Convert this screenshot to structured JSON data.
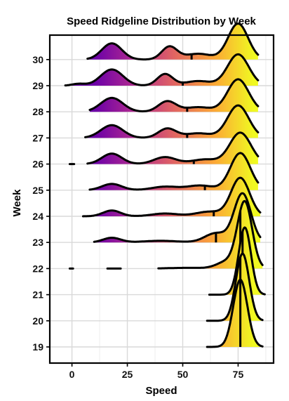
{
  "chart_data": {
    "type": "ridgeline",
    "title": "Speed Ridgeline Distribution by Week",
    "xlabel": "Speed",
    "ylabel": "Week",
    "xlim": [
      -10,
      91
    ],
    "x_ticks": [
      0,
      25,
      50,
      75
    ],
    "grid": true,
    "legend": "none",
    "fill_gradient": [
      "#6a00a8",
      "#b12a90",
      "#e16462",
      "#fca636",
      "#f0f921"
    ],
    "weeks": [
      "19",
      "20",
      "21",
      "22",
      "23",
      "24",
      "25",
      "26",
      "27",
      "28",
      "29",
      "30"
    ],
    "quantile_marker": [
      76,
      76,
      77,
      76,
      65,
      64,
      60,
      55,
      52,
      52,
      50,
      54
    ],
    "ridges": [
      {
        "week": "19",
        "range": [
          61,
          86
        ],
        "components": [
          {
            "mu": 76,
            "sd": 3.2,
            "h": 2.9
          }
        ]
      },
      {
        "week": "20",
        "range": [
          61,
          86
        ],
        "components": [
          {
            "mu": 77,
            "sd": 3.0,
            "h": 2.9
          }
        ]
      },
      {
        "week": "21",
        "range": [
          62,
          87
        ],
        "components": [
          {
            "mu": 78,
            "sd": 2.8,
            "h": 2.9
          }
        ]
      },
      {
        "week": "22",
        "range": [
          -1,
          86
        ],
        "segments": [
          [
            -1,
            0.5
          ],
          [
            16,
            22
          ],
          [
            39,
            86
          ]
        ],
        "components": [
          {
            "mu": 78,
            "sd": 3.3,
            "h": 2.85
          },
          {
            "mu": 70,
            "sd": 4.5,
            "h": 0.3
          },
          {
            "mu": 52,
            "sd": 8,
            "h": 0.03
          }
        ]
      },
      {
        "week": "23",
        "range": [
          10,
          85
        ],
        "components": [
          {
            "mu": 77,
            "sd": 3.8,
            "h": 2.1
          },
          {
            "mu": 65,
            "sd": 5,
            "h": 0.4
          },
          {
            "mu": 18,
            "sd": 4,
            "h": 0.2
          },
          {
            "mu": 40,
            "sd": 8,
            "h": 0.07
          }
        ]
      },
      {
        "week": "24",
        "range": [
          5,
          85
        ],
        "components": [
          {
            "mu": 76,
            "sd": 4.2,
            "h": 1.65
          },
          {
            "mu": 18,
            "sd": 4,
            "h": 0.25
          },
          {
            "mu": 42,
            "sd": 6,
            "h": 0.12
          },
          {
            "mu": 62,
            "sd": 6,
            "h": 0.2
          }
        ]
      },
      {
        "week": "25",
        "range": [
          8,
          84
        ],
        "components": [
          {
            "mu": 76,
            "sd": 4.5,
            "h": 1.6
          },
          {
            "mu": 18,
            "sd": 4.5,
            "h": 0.27
          },
          {
            "mu": 42,
            "sd": 6,
            "h": 0.15
          },
          {
            "mu": 58,
            "sd": 6,
            "h": 0.2
          }
        ]
      },
      {
        "week": "26",
        "range": [
          7,
          84
        ],
        "segments": [
          [
            -1,
            1
          ],
          [
            7,
            84
          ]
        ],
        "components": [
          {
            "mu": 76,
            "sd": 4.8,
            "h": 1.35
          },
          {
            "mu": 18,
            "sd": 4.5,
            "h": 0.45
          },
          {
            "mu": 42,
            "sd": 5,
            "h": 0.3
          },
          {
            "mu": 60,
            "sd": 6,
            "h": 0.2
          }
        ]
      },
      {
        "week": "27",
        "range": [
          6,
          84
        ],
        "components": [
          {
            "mu": 75,
            "sd": 4.8,
            "h": 1.4
          },
          {
            "mu": 18,
            "sd": 5,
            "h": 0.55
          },
          {
            "mu": 43,
            "sd": 4,
            "h": 0.4
          },
          {
            "mu": 57,
            "sd": 6,
            "h": 0.2
          }
        ]
      },
      {
        "week": "28",
        "range": [
          8,
          84
        ],
        "components": [
          {
            "mu": 75,
            "sd": 4.8,
            "h": 1.4
          },
          {
            "mu": 18,
            "sd": 5,
            "h": 0.6
          },
          {
            "mu": 43,
            "sd": 4,
            "h": 0.45
          },
          {
            "mu": 57,
            "sd": 6,
            "h": 0.2
          }
        ]
      },
      {
        "week": "29",
        "range": [
          -3,
          84
        ],
        "components": [
          {
            "mu": 75,
            "sd": 4.8,
            "h": 1.35
          },
          {
            "mu": 18,
            "sd": 5,
            "h": 0.7
          },
          {
            "mu": 42,
            "sd": 3.5,
            "h": 0.5
          },
          {
            "mu": 57,
            "sd": 6,
            "h": 0.2
          },
          {
            "mu": 3,
            "sd": 3,
            "h": 0.08
          }
        ]
      },
      {
        "week": "30",
        "range": [
          7,
          84
        ],
        "components": [
          {
            "mu": 75,
            "sd": 4.5,
            "h": 1.55
          },
          {
            "mu": 18,
            "sd": 4.5,
            "h": 0.7
          },
          {
            "mu": 44,
            "sd": 3.5,
            "h": 0.55
          },
          {
            "mu": 57,
            "sd": 6,
            "h": 0.25
          }
        ]
      }
    ]
  }
}
